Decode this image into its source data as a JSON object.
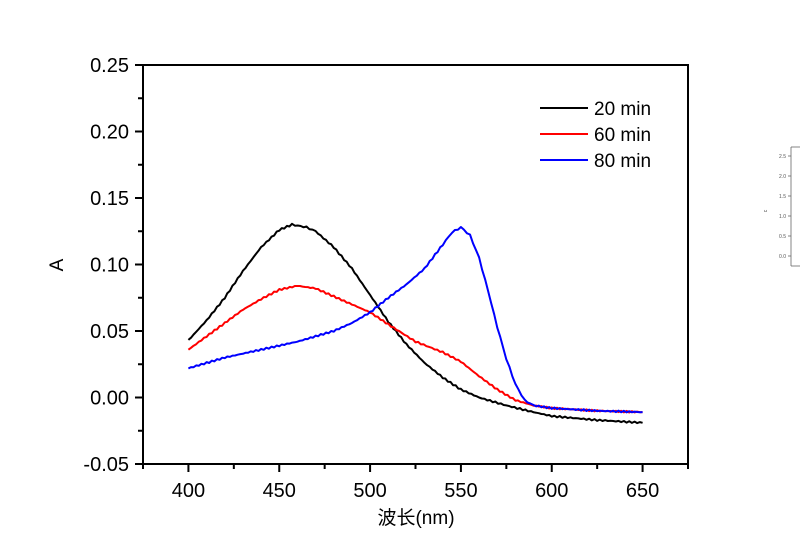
{
  "chart_data": {
    "type": "line",
    "title": "",
    "xlabel": "波长(nm)",
    "ylabel": "A",
    "xlim": [
      375,
      675
    ],
    "ylim": [
      -0.05,
      0.25
    ],
    "xticks": [
      400,
      450,
      500,
      550,
      600,
      650
    ],
    "xtick_labels": [
      "400",
      "450",
      "500",
      "550",
      "600",
      "650"
    ],
    "yticks": [
      -0.05,
      0.0,
      0.05,
      0.1,
      0.15,
      0.2,
      0.25
    ],
    "ytick_labels": [
      "-0.05",
      "0.00",
      "0.05",
      "0.10",
      "0.15",
      "0.20",
      "0.25"
    ],
    "grid": false,
    "legend_position": "top-right",
    "series": [
      {
        "name": "20 min",
        "color": "#000000",
        "x": [
          400,
          410,
          420,
          430,
          440,
          450,
          457,
          465,
          470,
          480,
          490,
          500,
          510,
          520,
          530,
          540,
          550,
          560,
          575,
          590,
          600,
          625,
          650
        ],
        "y": [
          0.043,
          0.058,
          0.075,
          0.095,
          0.113,
          0.126,
          0.13,
          0.128,
          0.125,
          0.113,
          0.097,
          0.077,
          0.057,
          0.04,
          0.026,
          0.015,
          0.006,
          0.0,
          -0.006,
          -0.011,
          -0.014,
          -0.017,
          -0.019
        ]
      },
      {
        "name": "60 min",
        "color": "#ff0000",
        "x": [
          400,
          410,
          420,
          430,
          440,
          450,
          460,
          470,
          480,
          490,
          500,
          510,
          525,
          540,
          550,
          560,
          570,
          580,
          590,
          600,
          625,
          650
        ],
        "y": [
          0.036,
          0.046,
          0.056,
          0.066,
          0.074,
          0.081,
          0.084,
          0.082,
          0.076,
          0.07,
          0.064,
          0.055,
          0.042,
          0.034,
          0.027,
          0.016,
          0.006,
          -0.002,
          -0.006,
          -0.008,
          -0.01,
          -0.011
        ]
      },
      {
        "name": "80 min",
        "color": "#0000ff",
        "x": [
          400,
          410,
          420,
          430,
          440,
          450,
          460,
          470,
          480,
          490,
          500,
          510,
          520,
          530,
          540,
          545,
          550,
          555,
          560,
          565,
          570,
          575,
          580,
          585,
          590,
          600,
          625,
          650
        ],
        "y": [
          0.022,
          0.026,
          0.03,
          0.033,
          0.036,
          0.039,
          0.042,
          0.046,
          0.05,
          0.056,
          0.064,
          0.075,
          0.085,
          0.097,
          0.115,
          0.124,
          0.128,
          0.122,
          0.105,
          0.08,
          0.053,
          0.029,
          0.01,
          -0.002,
          -0.006,
          -0.008,
          -0.01,
          -0.011
        ]
      }
    ],
    "inset_fragment": {
      "ylabel": "c",
      "ytick_labels": [
        "2.5",
        "2.0",
        "1.5",
        "1.0",
        "0.5",
        "0.0"
      ]
    }
  }
}
